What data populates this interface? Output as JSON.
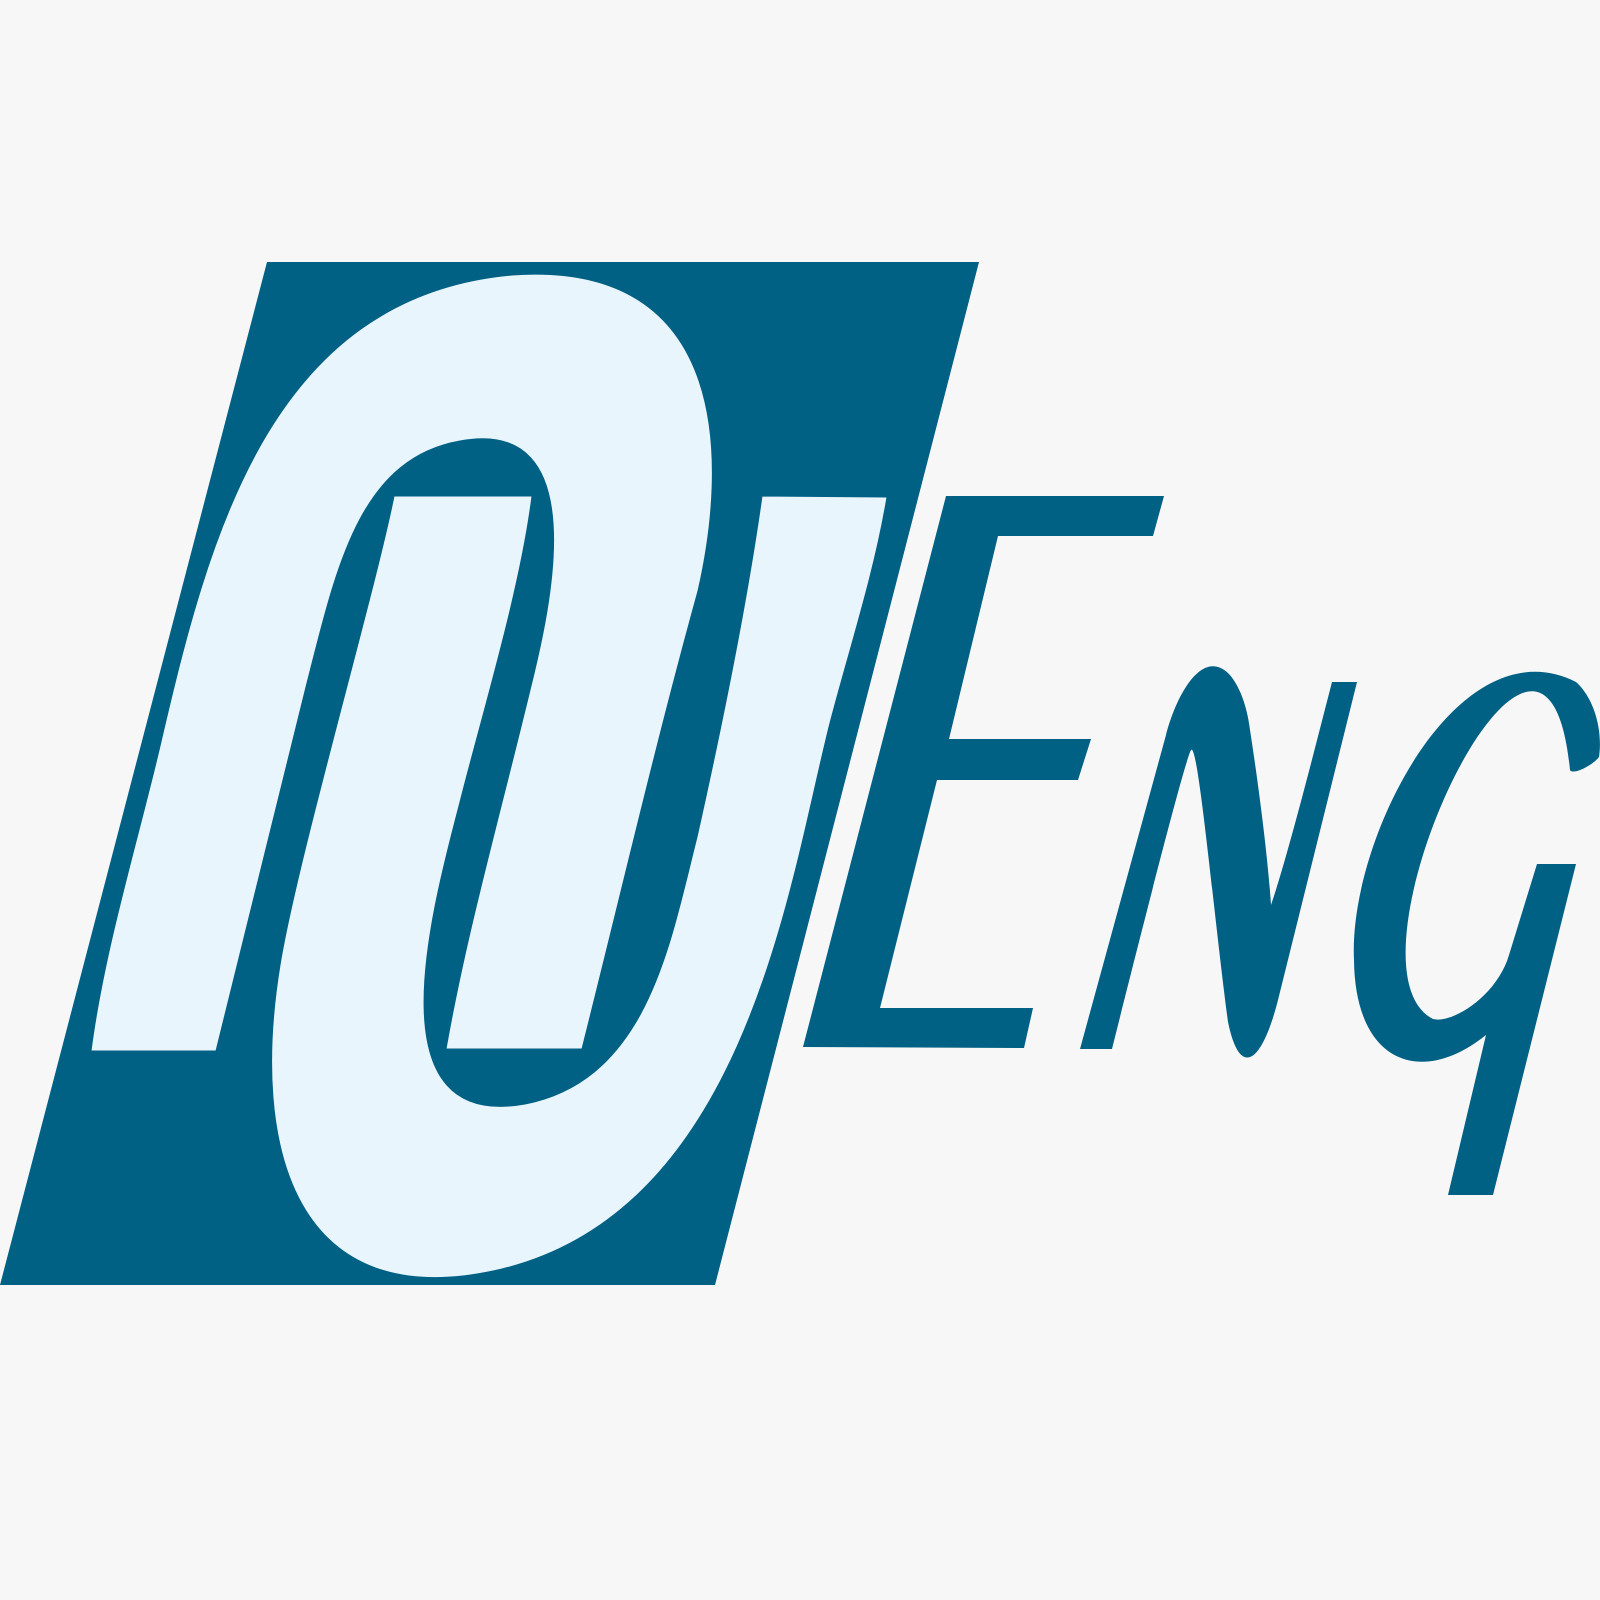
{
  "logo": {
    "name": "NEng",
    "lettering": [
      "N",
      "Eng"
    ],
    "colors": {
      "background": "#f7f7f7",
      "primary": "#016184",
      "light": "#e8f5fc"
    }
  }
}
